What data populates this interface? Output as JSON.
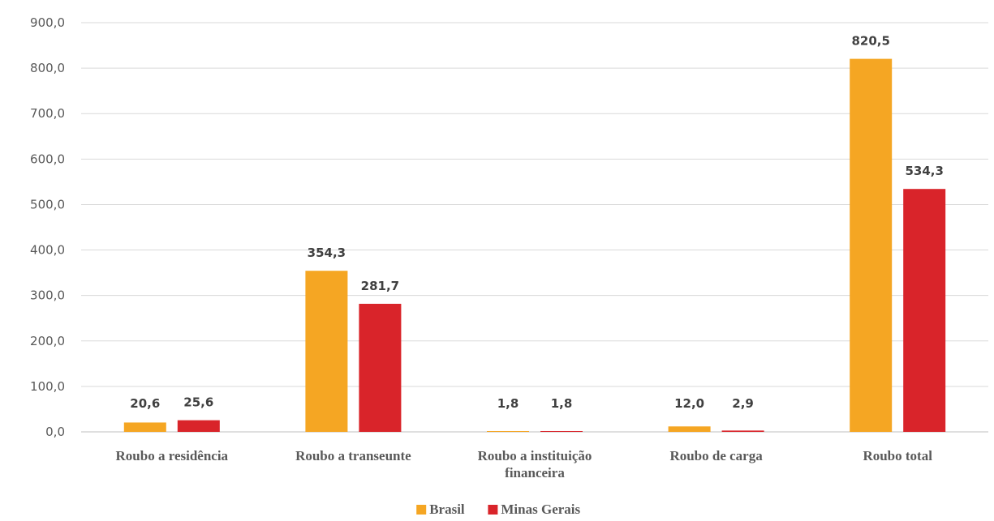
{
  "chart_data": {
    "type": "bar",
    "categories": [
      [
        "Roubo a residência"
      ],
      [
        "Roubo a transeunte"
      ],
      [
        "Roubo a instituição",
        "financeira"
      ],
      [
        "Roubo de carga"
      ],
      [
        "Roubo total"
      ]
    ],
    "series": [
      {
        "name": "Brasil",
        "color": "#F5A623",
        "values": [
          20.6,
          354.3,
          1.8,
          12.0,
          820.5
        ],
        "labels": [
          "20,6",
          "354,3",
          "1,8",
          "12,0",
          "820,5"
        ]
      },
      {
        "name": "Minas Gerais",
        "color": "#D9242A",
        "values": [
          25.6,
          281.7,
          1.8,
          2.9,
          534.3
        ],
        "labels": [
          "25,6",
          "281,7",
          "1,8",
          "2,9",
          "534,3"
        ]
      }
    ],
    "yticks": [
      "0,0",
      "100,0",
      "200,0",
      "300,0",
      "400,0",
      "500,0",
      "600,0",
      "700,0",
      "800,0",
      "900,0"
    ],
    "ylim": [
      0,
      900
    ],
    "grid": true,
    "legend_position": "bottom-center",
    "title": "",
    "xlabel": "",
    "ylabel": ""
  }
}
